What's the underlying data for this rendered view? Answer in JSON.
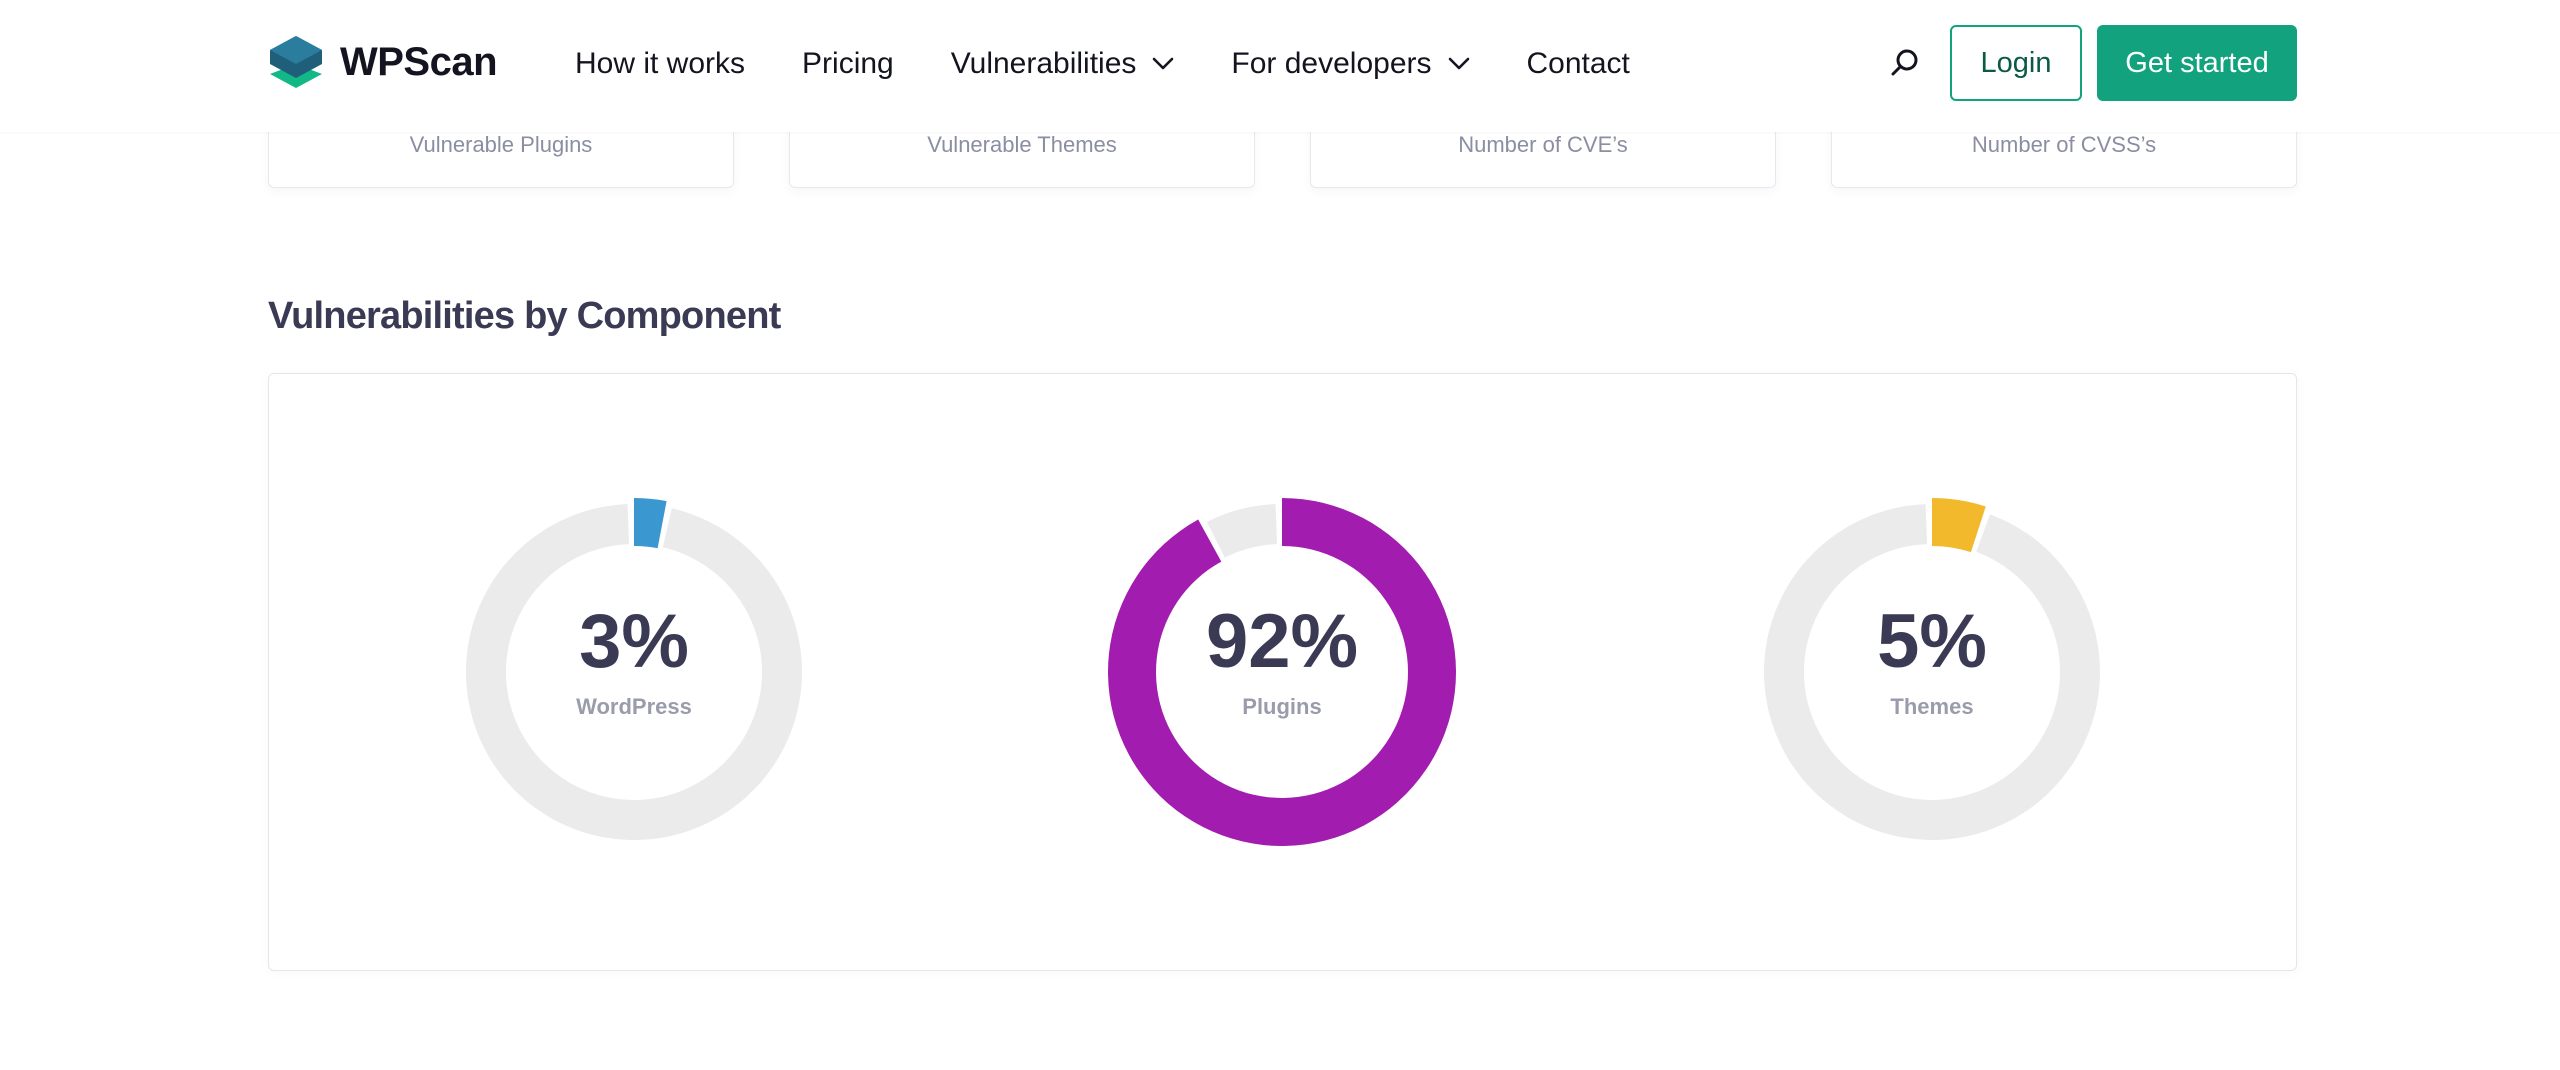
{
  "header": {
    "brand": "WPScan",
    "nav": [
      {
        "label": "How it works",
        "dropdown": false
      },
      {
        "label": "Pricing",
        "dropdown": false
      },
      {
        "label": "Vulnerabilities",
        "dropdown": true
      },
      {
        "label": "For developers",
        "dropdown": true
      },
      {
        "label": "Contact",
        "dropdown": false
      }
    ],
    "login_label": "Login",
    "cta_label": "Get started"
  },
  "stats": [
    {
      "label": "Vulnerable Plugins"
    },
    {
      "label": "Vulnerable Themes"
    },
    {
      "label": "Number of CVE’s"
    },
    {
      "label": "Number of CVSS’s"
    }
  ],
  "section": {
    "title": "Vulnerabilities by Component"
  },
  "chart_data": {
    "type": "pie",
    "variant": "donut",
    "title": "Vulnerabilities by Component",
    "series": [
      {
        "name": "WordPress",
        "value": 3,
        "display": "3%",
        "color": "#3b97cf"
      },
      {
        "name": "Plugins",
        "value": 92,
        "display": "92%",
        "color": "#a21caf"
      },
      {
        "name": "Themes",
        "value": 5,
        "display": "5%",
        "color": "#f2b92d"
      }
    ],
    "track_color": "#ebebeb"
  },
  "colors": {
    "brand_green": "#12a37e",
    "text_dark": "#3a3a55",
    "muted": "#8b8ea3"
  }
}
